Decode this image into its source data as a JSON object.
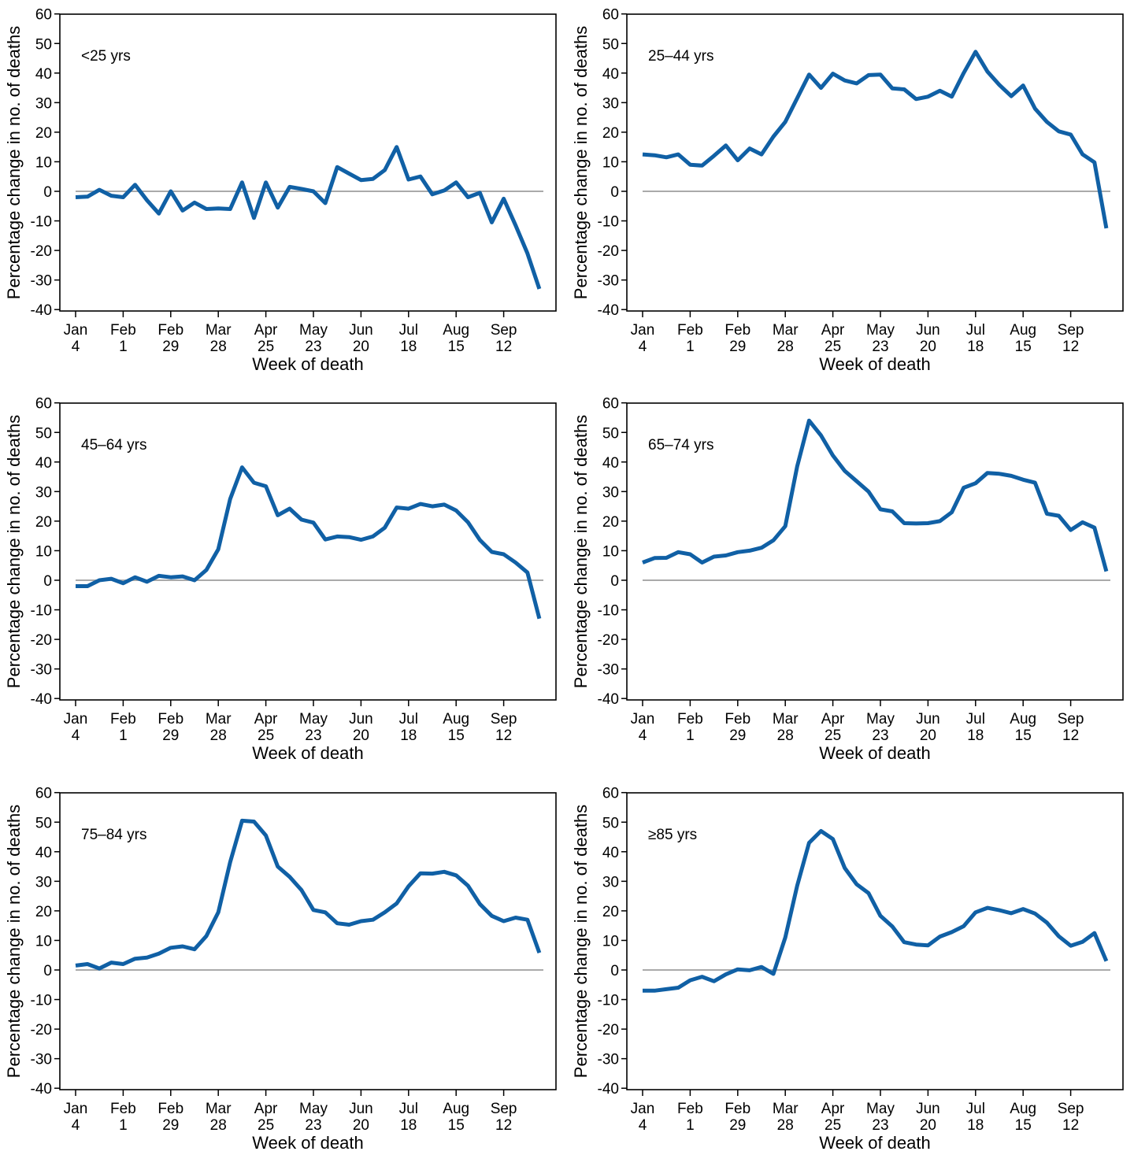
{
  "chart_data": [
    {
      "type": "line",
      "panel_label": "<25 yrs",
      "xlabel": "Week of death",
      "ylabel": "Percentage change in no. of deaths",
      "ylim": [
        -40,
        60
      ],
      "yticks": [
        -40,
        -30,
        -20,
        -10,
        0,
        10,
        20,
        30,
        40,
        50,
        60
      ],
      "xticks": [
        {
          "top": "Jan",
          "bottom": "4",
          "week": 0
        },
        {
          "top": "Feb",
          "bottom": "1",
          "week": 4
        },
        {
          "top": "Feb",
          "bottom": "29",
          "week": 8
        },
        {
          "top": "Mar",
          "bottom": "28",
          "week": 12
        },
        {
          "top": "Apr",
          "bottom": "25",
          "week": 16
        },
        {
          "top": "May",
          "bottom": "23",
          "week": 20
        },
        {
          "top": "Jun",
          "bottom": "20",
          "week": 24
        },
        {
          "top": "Jul",
          "bottom": "18",
          "week": 28
        },
        {
          "top": "Aug",
          "bottom": "15",
          "week": 32
        },
        {
          "top": "Sep",
          "bottom": "12",
          "week": 36
        }
      ],
      "reference_line": 0,
      "grid": false,
      "line_color": "#1060a5",
      "values": [
        -2,
        -1.8,
        0.5,
        -1.5,
        -2,
        2.2,
        -3,
        -7.5,
        0,
        -6.5,
        -3.8,
        -6,
        -5.8,
        -6,
        3,
        -9,
        3,
        -5.5,
        1.5,
        0.8,
        0,
        -4,
        8.2,
        6,
        3.8,
        4.2,
        7.2,
        15,
        4,
        5,
        -1,
        0.3,
        3,
        -2,
        -0.5,
        -10.5,
        -2.5,
        -11.5,
        -21,
        -33
      ]
    },
    {
      "type": "line",
      "panel_label": "25–44 yrs",
      "xlabel": "Week of death",
      "ylabel": "Percentage change in no. of deaths",
      "ylim": [
        -40,
        60
      ],
      "yticks": [
        -40,
        -30,
        -20,
        -10,
        0,
        10,
        20,
        30,
        40,
        50,
        60
      ],
      "xticks": [
        {
          "top": "Jan",
          "bottom": "4",
          "week": 0
        },
        {
          "top": "Feb",
          "bottom": "1",
          "week": 4
        },
        {
          "top": "Feb",
          "bottom": "29",
          "week": 8
        },
        {
          "top": "Mar",
          "bottom": "28",
          "week": 12
        },
        {
          "top": "Apr",
          "bottom": "25",
          "week": 16
        },
        {
          "top": "May",
          "bottom": "23",
          "week": 20
        },
        {
          "top": "Jun",
          "bottom": "20",
          "week": 24
        },
        {
          "top": "Jul",
          "bottom": "18",
          "week": 28
        },
        {
          "top": "Aug",
          "bottom": "15",
          "week": 32
        },
        {
          "top": "Sep",
          "bottom": "12",
          "week": 36
        }
      ],
      "reference_line": 0,
      "grid": false,
      "line_color": "#1060a5",
      "values": [
        12.5,
        12.2,
        11.5,
        12.5,
        9,
        8.7,
        12,
        15.5,
        10.5,
        14.5,
        12.5,
        18.5,
        23.5,
        31.5,
        39.5,
        35,
        39.8,
        37.5,
        36.5,
        39.3,
        39.5,
        34.8,
        34.5,
        31.2,
        32,
        34,
        32,
        40,
        47.2,
        40.5,
        36,
        32.2,
        35.8,
        28,
        23.5,
        20.3,
        19.2,
        12.5,
        9.8,
        -12.5
      ]
    },
    {
      "type": "line",
      "panel_label": "45–64 yrs",
      "xlabel": "Week of death",
      "ylabel": "Percentage change in no. of deaths",
      "ylim": [
        -40,
        60
      ],
      "yticks": [
        -40,
        -30,
        -20,
        -10,
        0,
        10,
        20,
        30,
        40,
        50,
        60
      ],
      "xticks": [
        {
          "top": "Jan",
          "bottom": "4",
          "week": 0
        },
        {
          "top": "Feb",
          "bottom": "1",
          "week": 4
        },
        {
          "top": "Feb",
          "bottom": "29",
          "week": 8
        },
        {
          "top": "Mar",
          "bottom": "28",
          "week": 12
        },
        {
          "top": "Apr",
          "bottom": "25",
          "week": 16
        },
        {
          "top": "May",
          "bottom": "23",
          "week": 20
        },
        {
          "top": "Jun",
          "bottom": "20",
          "week": 24
        },
        {
          "top": "Jul",
          "bottom": "18",
          "week": 28
        },
        {
          "top": "Aug",
          "bottom": "15",
          "week": 32
        },
        {
          "top": "Sep",
          "bottom": "12",
          "week": 36
        }
      ],
      "reference_line": 0,
      "grid": false,
      "line_color": "#1060a5",
      "values": [
        -2,
        -2,
        0,
        0.5,
        -1,
        1,
        -0.5,
        1.5,
        1,
        1.3,
        0,
        3.5,
        10.5,
        27.5,
        38.2,
        33,
        31.8,
        22,
        24.2,
        20.5,
        19.5,
        13.8,
        14.8,
        14.6,
        13.7,
        14.8,
        17.8,
        24.6,
        24.2,
        25.8,
        25,
        25.6,
        23.6,
        19.6,
        13.6,
        9.6,
        8.8,
        6,
        2.6,
        -13
      ]
    },
    {
      "type": "line",
      "panel_label": "65–74 yrs",
      "xlabel": "Week of death",
      "ylabel": "Percentage change in no. of deaths",
      "ylim": [
        -40,
        60
      ],
      "yticks": [
        -40,
        -30,
        -20,
        -10,
        0,
        10,
        20,
        30,
        40,
        50,
        60
      ],
      "xticks": [
        {
          "top": "Jan",
          "bottom": "4",
          "week": 0
        },
        {
          "top": "Feb",
          "bottom": "1",
          "week": 4
        },
        {
          "top": "Feb",
          "bottom": "29",
          "week": 8
        },
        {
          "top": "Mar",
          "bottom": "28",
          "week": 12
        },
        {
          "top": "Apr",
          "bottom": "25",
          "week": 16
        },
        {
          "top": "May",
          "bottom": "23",
          "week": 20
        },
        {
          "top": "Jun",
          "bottom": "20",
          "week": 24
        },
        {
          "top": "Jul",
          "bottom": "18",
          "week": 28
        },
        {
          "top": "Aug",
          "bottom": "15",
          "week": 32
        },
        {
          "top": "Sep",
          "bottom": "12",
          "week": 36
        }
      ],
      "reference_line": 0,
      "grid": false,
      "line_color": "#1060a5",
      "values": [
        6,
        7.5,
        7.6,
        9.5,
        8.8,
        6,
        8,
        8.4,
        9.5,
        10,
        11,
        13.5,
        18.3,
        38.5,
        54,
        49,
        42.2,
        37,
        33.5,
        30,
        24,
        23.3,
        19.3,
        19.2,
        19.3,
        20,
        23,
        31.3,
        32.8,
        36.3,
        36,
        35.3,
        34,
        33,
        22.5,
        21.8,
        17,
        19.6,
        17.8,
        3
      ]
    },
    {
      "type": "line",
      "panel_label": "75–84 yrs",
      "xlabel": "Week of death",
      "ylabel": "Percentage change in no. of deaths",
      "ylim": [
        -40,
        60
      ],
      "yticks": [
        -40,
        -30,
        -20,
        -10,
        0,
        10,
        20,
        30,
        40,
        50,
        60
      ],
      "xticks": [
        {
          "top": "Jan",
          "bottom": "4",
          "week": 0
        },
        {
          "top": "Feb",
          "bottom": "1",
          "week": 4
        },
        {
          "top": "Feb",
          "bottom": "29",
          "week": 8
        },
        {
          "top": "Mar",
          "bottom": "28",
          "week": 12
        },
        {
          "top": "Apr",
          "bottom": "25",
          "week": 16
        },
        {
          "top": "May",
          "bottom": "23",
          "week": 20
        },
        {
          "top": "Jun",
          "bottom": "20",
          "week": 24
        },
        {
          "top": "Jul",
          "bottom": "18",
          "week": 28
        },
        {
          "top": "Aug",
          "bottom": "15",
          "week": 32
        },
        {
          "top": "Sep",
          "bottom": "12",
          "week": 36
        }
      ],
      "reference_line": 0,
      "grid": false,
      "line_color": "#1060a5",
      "values": [
        1.5,
        2,
        0.5,
        2.5,
        2,
        3.8,
        4.2,
        5.5,
        7.5,
        8,
        7,
        11.5,
        19.5,
        36.5,
        50.5,
        50.2,
        45.5,
        35,
        31.5,
        27,
        20.3,
        19.5,
        15.8,
        15.3,
        16.5,
        17,
        19.5,
        22.5,
        28.3,
        32.7,
        32.6,
        33.2,
        32,
        28.5,
        22.3,
        18.3,
        16.5,
        17.7,
        17,
        5.8
      ]
    },
    {
      "type": "line",
      "panel_label": "≥85 yrs",
      "xlabel": "Week of death",
      "ylabel": "Percentage change in no. of deaths",
      "ylim": [
        -40,
        60
      ],
      "yticks": [
        -40,
        -30,
        -20,
        -10,
        0,
        10,
        20,
        30,
        40,
        50,
        60
      ],
      "xticks": [
        {
          "top": "Jan",
          "bottom": "4",
          "week": 0
        },
        {
          "top": "Feb",
          "bottom": "1",
          "week": 4
        },
        {
          "top": "Feb",
          "bottom": "29",
          "week": 8
        },
        {
          "top": "Mar",
          "bottom": "28",
          "week": 12
        },
        {
          "top": "Apr",
          "bottom": "25",
          "week": 16
        },
        {
          "top": "May",
          "bottom": "23",
          "week": 20
        },
        {
          "top": "Jun",
          "bottom": "20",
          "week": 24
        },
        {
          "top": "Jul",
          "bottom": "18",
          "week": 28
        },
        {
          "top": "Aug",
          "bottom": "15",
          "week": 32
        },
        {
          "top": "Sep",
          "bottom": "12",
          "week": 36
        }
      ],
      "reference_line": 0,
      "grid": false,
      "line_color": "#1060a5",
      "values": [
        -7,
        -7,
        -6.5,
        -6,
        -3.5,
        -2.3,
        -3.8,
        -1.5,
        0.2,
        -0.1,
        1,
        -1.3,
        11,
        28.5,
        43,
        47,
        44.3,
        34.5,
        29,
        26,
        18.3,
        14.7,
        9.4,
        8.6,
        8.3,
        11.3,
        12.8,
        14.8,
        19.5,
        21,
        20.2,
        19.2,
        20.6,
        19.1,
        16,
        11.4,
        8.2,
        9.5,
        12.5,
        3
      ]
    }
  ]
}
